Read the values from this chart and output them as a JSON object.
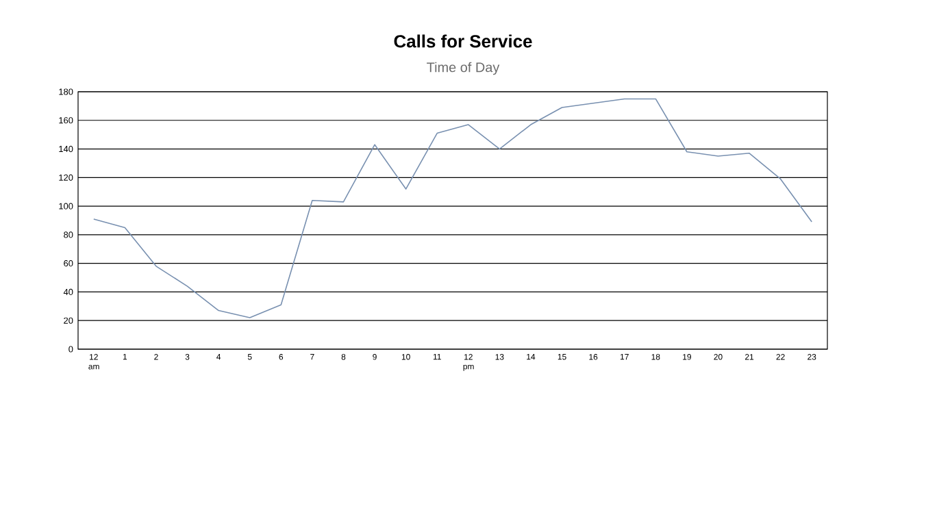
{
  "chart_data": {
    "type": "line",
    "title": "Calls for Service",
    "subtitle": "Time of Day",
    "categories": [
      "12 am",
      "1",
      "2",
      "3",
      "4",
      "5",
      "6",
      "7",
      "8",
      "9",
      "10",
      "11",
      "12 pm",
      "13",
      "14",
      "15",
      "16",
      "17",
      "18",
      "19",
      "20",
      "21",
      "22",
      "23"
    ],
    "series": [
      {
        "color": "#7890b0",
        "values": [
          91,
          85,
          58,
          44,
          27,
          22,
          31,
          104,
          103,
          143,
          112,
          151,
          157,
          140,
          157,
          169,
          172,
          175,
          175,
          138,
          135,
          137,
          119,
          89
        ]
      }
    ],
    "ylim": [
      0,
      180
    ],
    "yticks": [
      0,
      20,
      40,
      60,
      80,
      100,
      120,
      140,
      160,
      180
    ],
    "grid": "y",
    "marker": "none",
    "line_style": "solid"
  }
}
